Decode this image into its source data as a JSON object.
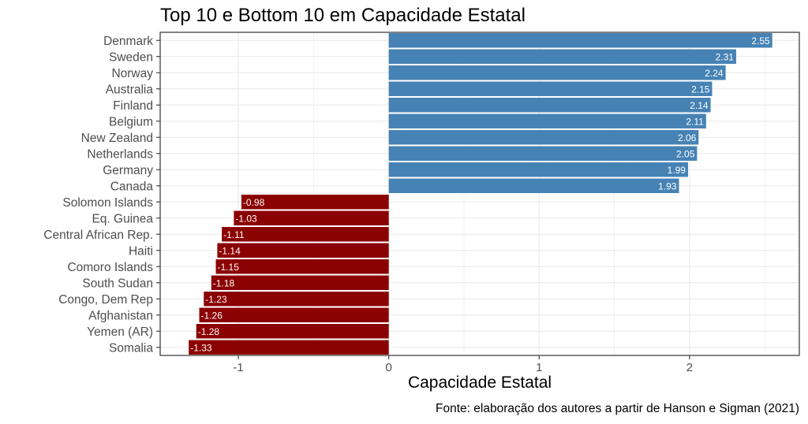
{
  "chart_data": {
    "type": "bar",
    "orientation": "horizontal",
    "title": "Top 10 e Bottom 10 em Capacidade Estatal",
    "xlabel": "Capacidade Estatal",
    "ylabel": "",
    "caption": "Fonte: elaboração dos autores a partir de Hanson e Sigman (2021)",
    "xlim": [
      -1.52,
      2.73
    ],
    "x_ticks": [
      -1,
      0,
      1,
      2
    ],
    "x_tick_labels": [
      "-1",
      "0",
      "1",
      "2"
    ],
    "grid": true,
    "colors": {
      "positive": "#4682B4",
      "negative": "#8B0000",
      "grid": "#EBEBEB",
      "panel_border": "#333333"
    },
    "categories": [
      "Denmark",
      "Sweden",
      "Norway",
      "Australia",
      "Finland",
      "Belgium",
      "New Zealand",
      "Netherlands",
      "Germany",
      "Canada",
      "Solomon Islands",
      "Eq. Guinea",
      "Central African Rep.",
      "Haiti",
      "Comoro Islands",
      "South Sudan",
      "Congo, Dem Rep",
      "Afghanistan",
      "Yemen (AR)",
      "Somalia"
    ],
    "values": [
      2.55,
      2.31,
      2.24,
      2.15,
      2.14,
      2.11,
      2.06,
      2.05,
      1.99,
      1.93,
      -0.98,
      -1.03,
      -1.11,
      -1.14,
      -1.15,
      -1.18,
      -1.23,
      -1.26,
      -1.28,
      -1.33
    ],
    "data_labels": [
      "2.55",
      "2.31",
      "2.24",
      "2.15",
      "2.14",
      "2.11",
      "2.06",
      "2.05",
      "1.99",
      "1.93",
      "-0.98",
      "-1.03",
      "-1.11",
      "-1.14",
      "-1.15",
      "-1.18",
      "-1.23",
      "-1.26",
      "-1.28",
      "-1.33"
    ]
  }
}
